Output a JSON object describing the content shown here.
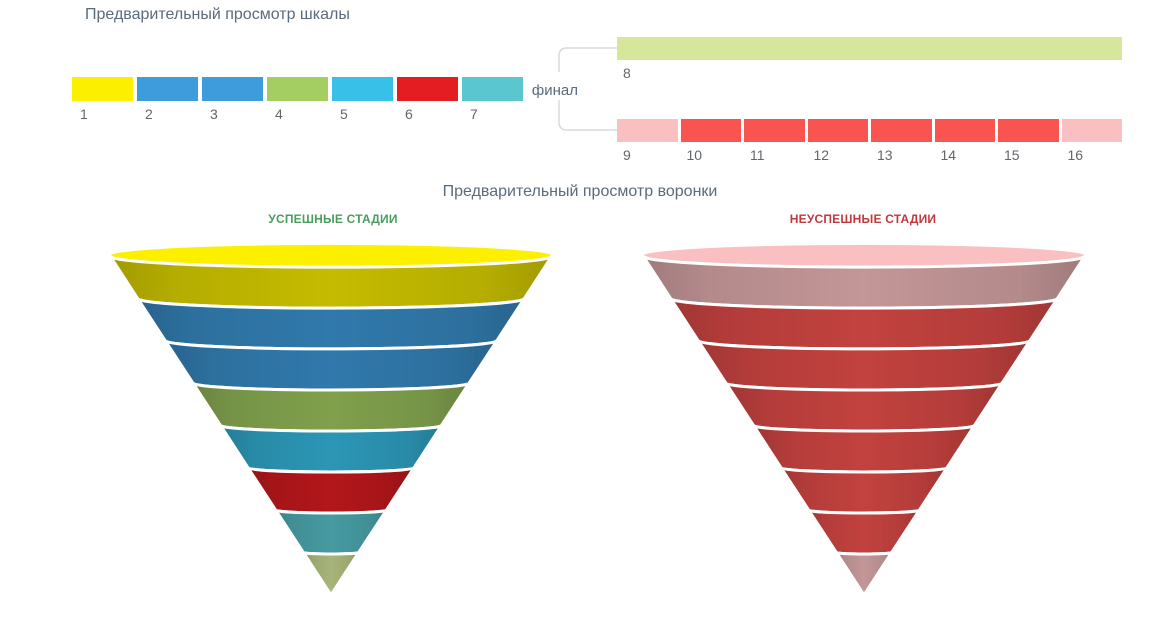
{
  "scale_preview": {
    "title": "Предварительный просмотр шкалы",
    "final_label": "финал",
    "bracket_color": "#d8dadd",
    "stages": [
      {
        "label": "1",
        "color": "#fcf000"
      },
      {
        "label": "2",
        "color": "#3e9bdc"
      },
      {
        "label": "3",
        "color": "#3e9bdc"
      },
      {
        "label": "4",
        "color": "#a4cd62"
      },
      {
        "label": "5",
        "color": "#38c0e8"
      },
      {
        "label": "6",
        "color": "#e41d22"
      },
      {
        "label": "7",
        "color": "#5ac6cf"
      }
    ],
    "success_final_stage": {
      "label": "8",
      "color": "#d6e79c"
    },
    "fail_final_stages": [
      {
        "label": "9",
        "color": "#fac0c1"
      },
      {
        "label": "10",
        "color": "#f95450"
      },
      {
        "label": "11",
        "color": "#f95450"
      },
      {
        "label": "12",
        "color": "#f95450"
      },
      {
        "label": "13",
        "color": "#f95450"
      },
      {
        "label": "14",
        "color": "#f95450"
      },
      {
        "label": "15",
        "color": "#f95450"
      },
      {
        "label": "16",
        "color": "#fac0c1"
      }
    ]
  },
  "funnel_preview": {
    "title": "Предварительный просмотр воронки",
    "success_funnel": {
      "title": "УСПЕШНЫЕ СТАДИИ",
      "title_color": "#4a9d5f",
      "segment_colors": [
        "#fcf000",
        "#3e9bdc",
        "#3e9bdc",
        "#a4cd62",
        "#38c0e8",
        "#e41d22",
        "#5ac6cf",
        "#d6e79c"
      ]
    },
    "fail_funnel": {
      "title": "НЕУСПЕШНЫЕ СТАДИИ",
      "title_color": "#c0393d",
      "segment_colors": [
        "#fac0c1",
        "#f95450",
        "#f95450",
        "#f95450",
        "#f95450",
        "#f95450",
        "#f95450",
        "#fac0c1"
      ]
    }
  },
  "chart_data": [
    {
      "type": "funnel",
      "title": "УСПЕШНЫЕ СТАДИИ",
      "stages": [
        "1",
        "2",
        "3",
        "4",
        "5",
        "6",
        "7",
        "8"
      ],
      "colors": [
        "#fcf000",
        "#3e9bdc",
        "#3e9bdc",
        "#a4cd62",
        "#38c0e8",
        "#e41d22",
        "#5ac6cf",
        "#d6e79c"
      ],
      "note": "preview funnel, 8 equal-height bands, no numeric values shown"
    },
    {
      "type": "funnel",
      "title": "НЕУСПЕШНЫЕ СТАДИИ",
      "stages": [
        "9",
        "10",
        "11",
        "12",
        "13",
        "14",
        "15",
        "16"
      ],
      "colors": [
        "#fac0c1",
        "#f95450",
        "#f95450",
        "#f95450",
        "#f95450",
        "#f95450",
        "#f95450",
        "#fac0c1"
      ],
      "note": "preview funnel, 8 equal-height bands, no numeric values shown"
    }
  ]
}
